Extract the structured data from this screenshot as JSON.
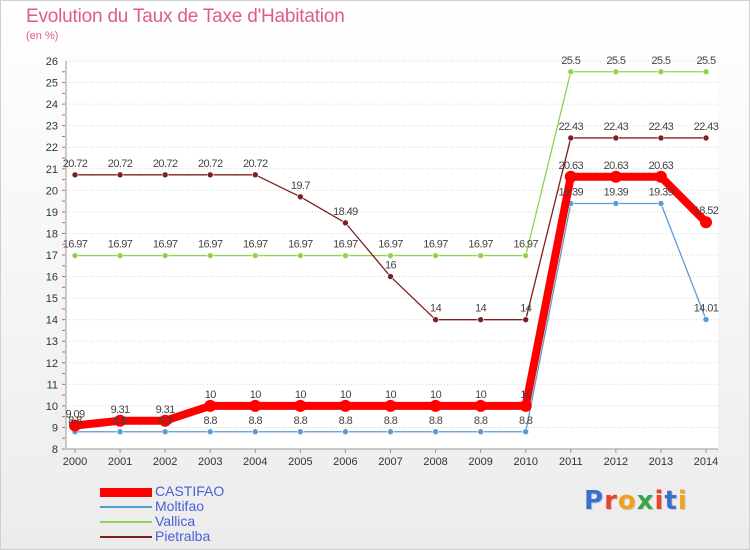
{
  "header": {
    "title": "Evolution du Taux de Taxe d'Habitation",
    "subtitle": "(en %)"
  },
  "logo": {
    "text": "Proxiti"
  },
  "chart_data": {
    "type": "line",
    "title": "Evolution du Taux de Taxe d'Habitation",
    "ylabel": "(en %)",
    "xlabel": "",
    "x": [
      "2000",
      "2001",
      "2002",
      "2003",
      "2004",
      "2005",
      "2006",
      "2007",
      "2008",
      "2009",
      "2010",
      "2011",
      "2012",
      "2013",
      "2014"
    ],
    "ylim": [
      8,
      26
    ],
    "yticks": [
      "8",
      "9",
      "10",
      "11",
      "12",
      "13",
      "14",
      "15",
      "16",
      "17",
      "18",
      "19",
      "20",
      "21",
      "22",
      "23",
      "24",
      "25",
      "26"
    ],
    "grid": "horizontal dotted",
    "legend_position": "bottom-left",
    "series": [
      {
        "name": "CASTIFAO",
        "color": "#ff0000",
        "values": [
          9.09,
          9.31,
          9.31,
          10,
          10,
          10,
          10,
          10,
          10,
          10,
          10,
          20.63,
          20.63,
          20.63,
          18.52
        ],
        "labels": [
          "9.09",
          "9.31",
          "9.31",
          "10",
          "10",
          "10",
          "10",
          "10",
          "10",
          "10",
          "10",
          "20.63",
          "20.63",
          "20.63",
          "18.52"
        ]
      },
      {
        "name": "Moltifao",
        "color": "#5b9bd5",
        "values": [
          8.8,
          8.8,
          8.8,
          8.8,
          8.8,
          8.8,
          8.8,
          8.8,
          8.8,
          8.8,
          8.8,
          19.39,
          19.39,
          19.39,
          14.01
        ],
        "labels": [
          "8.8",
          "8.8",
          "8.8",
          "8.8",
          "8.8",
          "8.8",
          "8.8",
          "8.8",
          "8.8",
          "8.8",
          "8.8",
          "19.39",
          "19.39",
          "19.39",
          "14.01"
        ]
      },
      {
        "name": "Vallica",
        "color": "#92d050",
        "values": [
          16.97,
          16.97,
          16.97,
          16.97,
          16.97,
          16.97,
          16.97,
          16.97,
          16.97,
          16.97,
          16.97,
          25.5,
          25.5,
          25.5,
          25.5
        ],
        "labels": [
          "16.97",
          "16.97",
          "16.97",
          "16.97",
          "16.97",
          "16.97",
          "16.97",
          "16.97",
          "16.97",
          "16.97",
          "16.97",
          "25.5",
          "25.5",
          "25.5",
          "25.5"
        ]
      },
      {
        "name": "Pietralba",
        "color": "#7b2020",
        "values": [
          20.72,
          20.72,
          20.72,
          20.72,
          20.72,
          19.7,
          18.49,
          16,
          14,
          14,
          14,
          22.43,
          22.43,
          22.43,
          22.43
        ],
        "labels": [
          "20.72",
          "20.72",
          "20.72",
          "20.72",
          "20.72",
          "19.7",
          "18.49",
          "16",
          "14",
          "14",
          "14",
          "22.43",
          "22.43",
          "22.43",
          "22.43"
        ]
      }
    ]
  }
}
